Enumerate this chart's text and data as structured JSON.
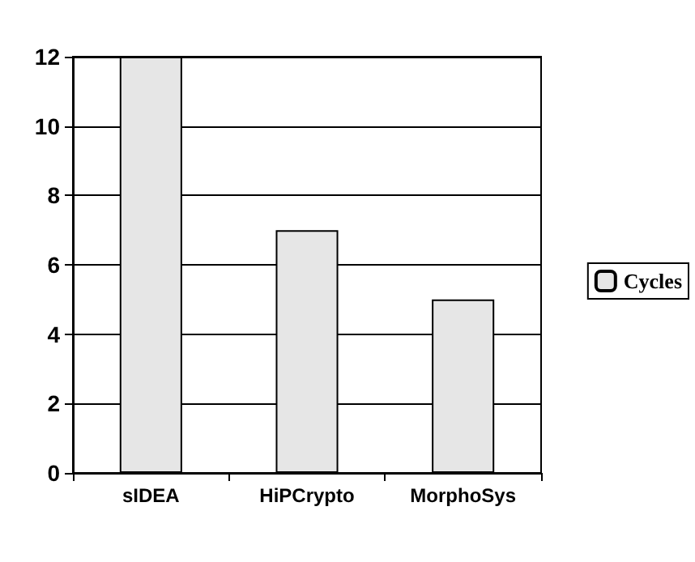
{
  "chart_data": {
    "type": "bar",
    "categories": [
      "sIDEA",
      "HiPCrypto",
      "MorphoSys"
    ],
    "series": [
      {
        "name": "Cycles",
        "color": "#e6e6e6",
        "values": [
          12,
          7,
          5
        ]
      }
    ],
    "ylim": [
      0,
      12
    ],
    "yticks": [
      0,
      2,
      4,
      6,
      8,
      10,
      12
    ],
    "grid": "y",
    "legend": "right"
  }
}
